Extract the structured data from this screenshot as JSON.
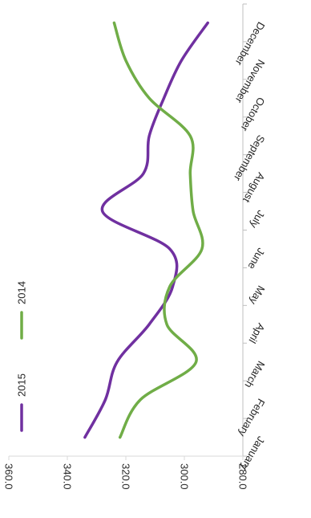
{
  "chart_data": {
    "type": "line",
    "orientation": "rotated-90-clockwise",
    "categories": [
      "January",
      "February",
      "March",
      "April",
      "May",
      "June",
      "July",
      "August",
      "September",
      "October",
      "November",
      "December"
    ],
    "series": [
      {
        "name": "2015",
        "color": "#7030a0",
        "values": [
          334,
          327,
          323,
          312,
          304,
          305,
          328,
          314,
          312,
          307,
          301,
          292
        ]
      },
      {
        "name": "2014",
        "color": "#70ad47",
        "values": [
          322,
          315,
          296,
          306,
          305,
          294,
          297,
          298,
          298,
          312,
          320,
          324
        ]
      }
    ],
    "ylim": [
      280,
      360
    ],
    "yticks": [
      "280.0",
      "300.0",
      "320.0",
      "340.0",
      "360.0"
    ],
    "legend_position": "bottom-left",
    "grid": false
  }
}
